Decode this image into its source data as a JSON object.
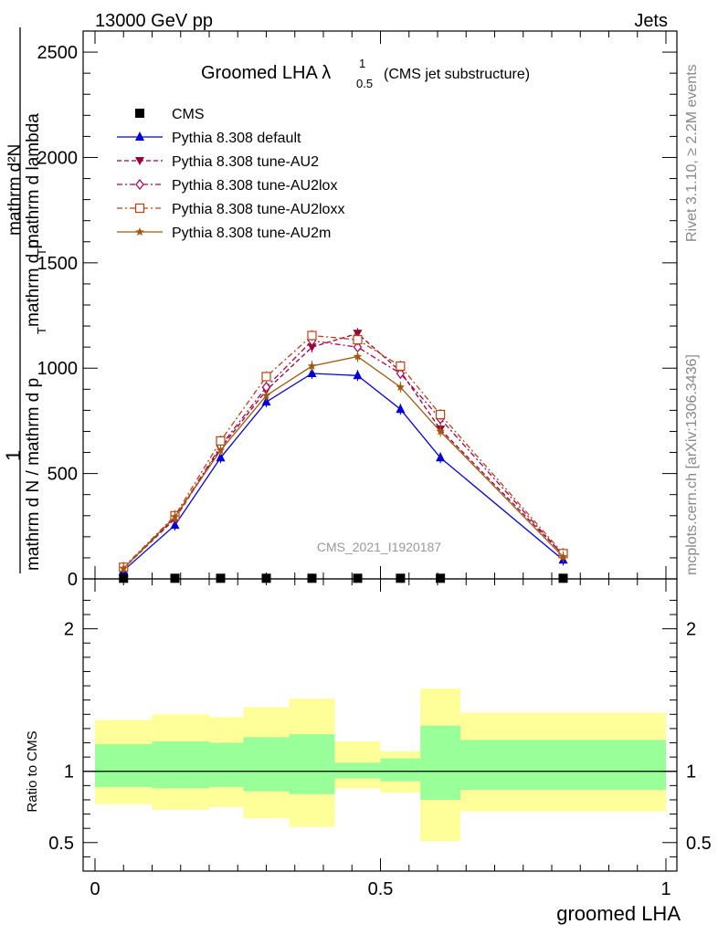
{
  "header": {
    "left": "13000 GeV pp",
    "right": "Jets"
  },
  "side_text": {
    "rivet": "Rivet 3.1.10, ≥ 2.2M events",
    "mcplots": "mcplots.cern.ch [arXiv:1306.3436]"
  },
  "chart_data": {
    "type": "line",
    "title": "Groomed LHA",
    "title_symbol": "λ",
    "title_sup": "1",
    "title_sub": "0.5",
    "title_suffix": "(CMS jet substructure)",
    "watermark": "CMS_2021_I1920187",
    "xlabel": "groomed LHA",
    "ylabel_main": {
      "numerator": "1",
      "denominator": "mathrm d N / mathrm d p_T mathrm d p_T mathrm d lambda",
      "text_numerator": "mathrm d²N",
      "text_denominator_p": "mathrm d p",
      "text_denominator_t": "T",
      "text_denominator_l": "mathrm d lambda",
      "full_lines": [
        "mathrm d N / mathrm d p",
        "T",
        "mathrm d p",
        "T",
        "mathrm d lambda",
        "mathrm d²N"
      ]
    },
    "ylabel_ratio": "Ratio to CMS",
    "xlim": [
      0,
      1
    ],
    "ylim_main": [
      0,
      2600
    ],
    "ylim_ratio": [
      0.3,
      2.35
    ],
    "x_ticks": [
      "0",
      "0.5",
      "1"
    ],
    "y_ticks_main": [
      "0",
      "500",
      "1000",
      "1500",
      "2000",
      "2500"
    ],
    "y_ticks_ratio": [
      "0.5",
      "1",
      "2"
    ],
    "bin_edges": [
      0,
      0.1,
      0.2,
      0.26,
      0.34,
      0.42,
      0.5,
      0.57,
      0.64,
      1.0
    ],
    "bin_centers": [
      0.05,
      0.14,
      0.22,
      0.3,
      0.38,
      0.46,
      0.535,
      0.605,
      0.82
    ],
    "legend": [
      {
        "name": "CMS",
        "color": "#000000",
        "marker": "square-filled",
        "dash": "none"
      },
      {
        "name": "Pythia 8.308 default",
        "color": "#0000dd",
        "marker": "triangle-up",
        "dash": "solid"
      },
      {
        "name": "Pythia 8.308 tune-AU2",
        "color": "#990033",
        "marker": "triangle-down",
        "dash": "dashed"
      },
      {
        "name": "Pythia 8.308 tune-AU2lox",
        "color": "#aa0055",
        "marker": "diamond-open",
        "dash": "dashdot"
      },
      {
        "name": "Pythia 8.308 tune-AU2loxx",
        "color": "#c04010",
        "marker": "square-open",
        "dash": "dashdot"
      },
      {
        "name": "Pythia 8.308 tune-AU2m",
        "color": "#a05a10",
        "marker": "star",
        "dash": "solid"
      }
    ],
    "series": [
      {
        "name": "CMS",
        "values": [
          3,
          3,
          3,
          3,
          3,
          3,
          3,
          3,
          3
        ]
      },
      {
        "name": "Pythia 8.308 default",
        "values": [
          40,
          255,
          575,
          840,
          975,
          965,
          805,
          575,
          90
        ]
      },
      {
        "name": "Pythia 8.308 tune-AU2",
        "values": [
          50,
          285,
          620,
          895,
          1100,
          1165,
          985,
          710,
          115
        ]
      },
      {
        "name": "Pythia 8.308 tune-AU2lox",
        "values": [
          52,
          290,
          630,
          910,
          1130,
          1100,
          975,
          760,
          112
        ]
      },
      {
        "name": "Pythia 8.308 tune-AU2loxx",
        "values": [
          55,
          300,
          655,
          960,
          1155,
          1135,
          1010,
          780,
          120
        ]
      },
      {
        "name": "Pythia 8.308 tune-AU2m",
        "values": [
          50,
          295,
          610,
          870,
          1010,
          1055,
          910,
          700,
          105
        ]
      }
    ],
    "ratio_bands": {
      "green": [
        [
          0.89,
          1.19
        ],
        [
          0.88,
          1.21
        ],
        [
          0.89,
          1.2
        ],
        [
          0.86,
          1.24
        ],
        [
          0.84,
          1.26
        ],
        [
          0.95,
          1.06
        ],
        [
          0.93,
          1.09
        ],
        [
          0.8,
          1.32
        ],
        [
          0.87,
          1.22
        ]
      ],
      "yellow": [
        [
          0.77,
          1.36
        ],
        [
          0.73,
          1.4
        ],
        [
          0.75,
          1.38
        ],
        [
          0.67,
          1.45
        ],
        [
          0.61,
          1.51
        ],
        [
          0.88,
          1.21
        ],
        [
          0.85,
          1.14
        ],
        [
          0.51,
          1.58
        ],
        [
          0.72,
          1.41
        ]
      ]
    },
    "band_colors": {
      "green": "#99ff99",
      "yellow": "#ffff99"
    },
    "ratio_reference": 1.0
  }
}
